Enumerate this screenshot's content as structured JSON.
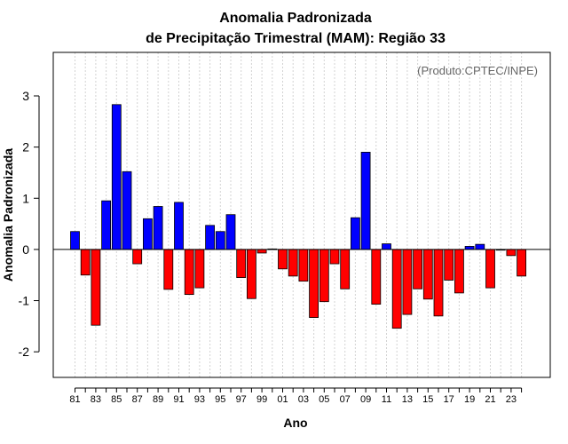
{
  "chart_data": {
    "type": "bar",
    "title": "Anomalia Padronizada",
    "subtitle": "de Precipitação Trimestral (MAM): Região 33",
    "xlabel": "Ano",
    "ylabel": "Anomalia Padronizada",
    "credit": "(Produto:CPTEC/INPE)",
    "ylim": [
      -2.5,
      3.85
    ],
    "yticks": [
      -2,
      -1,
      0,
      1,
      2,
      3
    ],
    "yticklabels": [
      "-2",
      "-1",
      "0",
      "1",
      "2",
      "3"
    ],
    "xticklabels": [
      "81",
      "83",
      "85",
      "87",
      "89",
      "91",
      "93",
      "95",
      "97",
      "99",
      "01",
      "03",
      "05",
      "07",
      "09",
      "11",
      "13",
      "15",
      "17",
      "19",
      "21",
      "23"
    ],
    "grid": true,
    "positive_color": "#0000ff",
    "negative_color": "#ff0000",
    "categories": [
      "1981",
      "1982",
      "1983",
      "1984",
      "1985",
      "1986",
      "1987",
      "1988",
      "1989",
      "1990",
      "1991",
      "1992",
      "1993",
      "1994",
      "1995",
      "1996",
      "1997",
      "1998",
      "1999",
      "2000",
      "2001",
      "2002",
      "2003",
      "2004",
      "2005",
      "2006",
      "2007",
      "2008",
      "2009",
      "2010",
      "2011",
      "2012",
      "2013",
      "2014",
      "2015",
      "2016",
      "2017",
      "2018",
      "2019",
      "2020",
      "2021",
      "2022",
      "2023",
      "2024"
    ],
    "values": [
      0.35,
      -0.5,
      -1.48,
      0.95,
      2.83,
      1.52,
      -0.28,
      0.6,
      0.84,
      -0.78,
      0.92,
      -0.88,
      -0.75,
      0.47,
      0.35,
      0.68,
      -0.55,
      -0.96,
      -0.07,
      0.01,
      -0.38,
      -0.52,
      -0.62,
      -1.33,
      -1.02,
      -0.28,
      -0.77,
      0.62,
      1.9,
      -1.07,
      0.11,
      -1.54,
      -1.27,
      -0.77,
      -0.97,
      -1.3,
      -0.6,
      -0.85,
      0.06,
      0.1,
      -0.75,
      0.0,
      -0.12,
      -0.52
    ]
  }
}
